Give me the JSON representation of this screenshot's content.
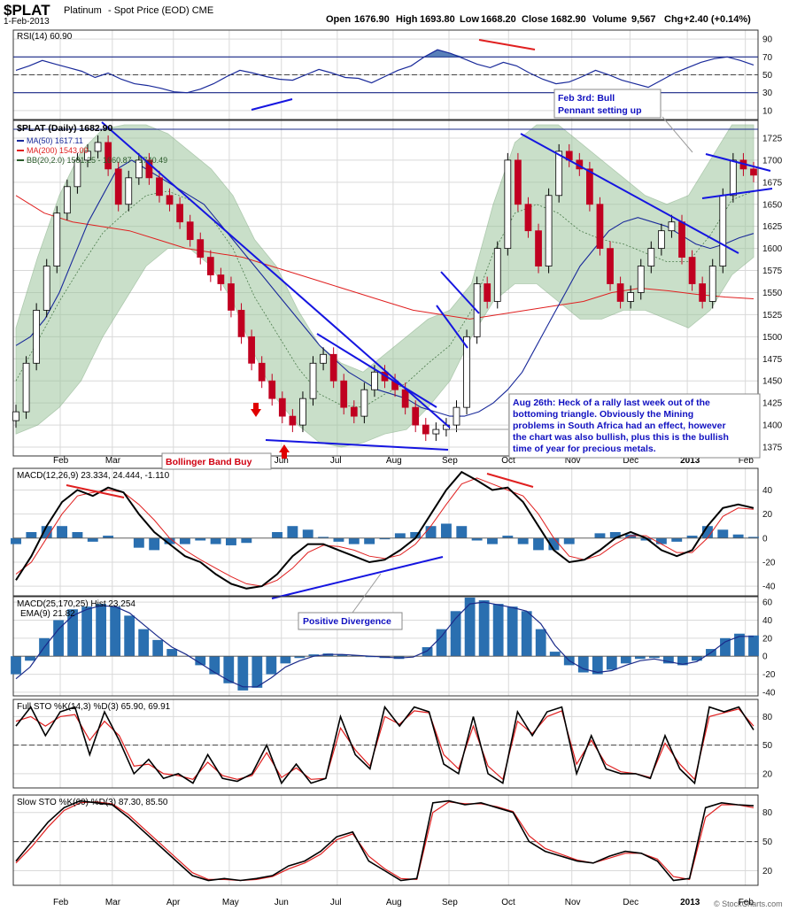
{
  "header": {
    "symbol": "$PLAT",
    "name": "Platinum",
    "desc": "- Spot Price (EOD) CME",
    "date": "1-Feb-2013",
    "open_label": "Open",
    "open": "1676.90",
    "high_label": "High",
    "high": "1693.80",
    "low_label": "Low",
    "low": "1668.20",
    "close_label": "Close",
    "close": "1682.90",
    "volume_label": "Volume",
    "volume": "9,567",
    "chg_label": "Chg",
    "chg": "+2.40 (+0.14%)",
    "source": "© StockCharts.com"
  },
  "colors": {
    "up": "#000000",
    "down": "#c00020",
    "ma50": "#1a2a9a",
    "ma200": "#e02020",
    "bb_fill": "#9dc59d",
    "trend": "#1515e0",
    "red_trend": "#e02020",
    "hist": "#2a6fb0",
    "rsi_fill": "#3060a8"
  },
  "x_axis": {
    "months": [
      "Feb",
      "Mar",
      "Apr",
      "May",
      "Jun",
      "Jul",
      "Aug",
      "Sep",
      "Oct",
      "Nov",
      "Dec",
      "2013",
      "Feb"
    ]
  },
  "chart_data": [
    {
      "type": "line",
      "panel": "rsi",
      "label": "RSI(14) 60.90",
      "ylim": [
        0,
        100
      ],
      "yticks": [
        10,
        30,
        50,
        70,
        90
      ],
      "values": [
        55,
        60,
        66,
        62,
        58,
        54,
        47,
        52,
        45,
        40,
        38,
        35,
        31,
        30,
        34,
        40,
        48,
        55,
        52,
        48,
        45,
        44,
        50,
        56,
        52,
        47,
        46,
        41,
        48,
        55,
        60,
        70,
        78,
        74,
        68,
        62,
        58,
        64,
        60,
        52,
        45,
        40,
        42,
        48,
        55,
        50,
        44,
        40,
        36,
        44,
        52,
        58,
        64,
        68,
        70,
        66,
        61
      ]
    },
    {
      "type": "candlestick",
      "panel": "price",
      "title": "$PLAT (Daily) 1682.90",
      "legend": [
        "MA(50) 1617.11",
        "MA(200) 1543.00",
        "BB(20,2.0) 1581.25 - 1660.87 - 1740.49"
      ],
      "ylim": [
        1365,
        1745
      ],
      "yticks": [
        1375,
        1400,
        1425,
        1450,
        1475,
        1500,
        1525,
        1550,
        1575,
        1600,
        1625,
        1650,
        1675,
        1700,
        1725
      ],
      "close": [
        1415,
        1470,
        1530,
        1580,
        1640,
        1670,
        1700,
        1710,
        1720,
        1690,
        1650,
        1680,
        1700,
        1680,
        1660,
        1650,
        1630,
        1610,
        1590,
        1570,
        1560,
        1530,
        1500,
        1470,
        1450,
        1430,
        1410,
        1400,
        1430,
        1470,
        1480,
        1450,
        1420,
        1410,
        1440,
        1460,
        1450,
        1440,
        1420,
        1400,
        1390,
        1395,
        1400,
        1420,
        1500,
        1560,
        1540,
        1600,
        1700,
        1650,
        1620,
        1580,
        1660,
        1710,
        1700,
        1690,
        1650,
        1600,
        1560,
        1540,
        1550,
        1580,
        1600,
        1620,
        1630,
        1590,
        1560,
        1540,
        1580,
        1660,
        1700,
        1690,
        1683
      ],
      "ma50": [
        1490,
        1500,
        1520,
        1550,
        1590,
        1630,
        1660,
        1690,
        1700,
        1690,
        1680,
        1670,
        1660,
        1650,
        1630,
        1610,
        1590,
        1570,
        1550,
        1530,
        1510,
        1490,
        1475,
        1460,
        1450,
        1440,
        1435,
        1430,
        1420,
        1415,
        1410,
        1410,
        1415,
        1425,
        1440,
        1460,
        1490,
        1520,
        1550,
        1580,
        1600,
        1620,
        1630,
        1635,
        1630,
        1625,
        1615,
        1605,
        1600,
        1605,
        1612,
        1617
      ],
      "ma200": [
        1660,
        1640,
        1630,
        1625,
        1620,
        1610,
        1600,
        1595,
        1590,
        1580,
        1570,
        1560,
        1550,
        1540,
        1530,
        1525,
        1520,
        1525,
        1530,
        1535,
        1540,
        1550,
        1555,
        1552,
        1548,
        1545,
        1543
      ],
      "bb_upper": [
        1510,
        1590,
        1660,
        1710,
        1735,
        1740,
        1740,
        1730,
        1710,
        1690,
        1660,
        1610,
        1580,
        1530,
        1490,
        1470,
        1460,
        1480,
        1500,
        1520,
        1530,
        1560,
        1650,
        1720,
        1740,
        1740,
        1720,
        1700,
        1680,
        1660,
        1650,
        1660,
        1700,
        1740,
        1740
      ],
      "bb_lower": [
        1390,
        1400,
        1420,
        1450,
        1500,
        1540,
        1580,
        1600,
        1600,
        1580,
        1540,
        1480,
        1430,
        1400,
        1380,
        1375,
        1380,
        1390,
        1395,
        1420,
        1450,
        1500,
        1540,
        1560,
        1560,
        1540,
        1520,
        1520,
        1530,
        1530,
        1520,
        1510,
        1530,
        1570,
        1590
      ]
    },
    {
      "type": "line",
      "panel": "macd1",
      "label": "MACD(12,26,9) 23.334, 24.444, -1.110",
      "ylim": [
        -48,
        58
      ],
      "yticks": [
        -40,
        -20,
        0,
        20,
        40
      ],
      "macd": [
        -35,
        -15,
        10,
        30,
        40,
        35,
        42,
        38,
        20,
        5,
        -5,
        -15,
        -20,
        -30,
        -38,
        -42,
        -40,
        -30,
        -15,
        -5,
        -5,
        -10,
        -15,
        -20,
        -18,
        -10,
        0,
        20,
        40,
        55,
        48,
        40,
        42,
        30,
        10,
        -10,
        -20,
        -18,
        -10,
        0,
        5,
        0,
        -10,
        -15,
        -10,
        10,
        25,
        28,
        25
      ],
      "signal": [
        -30,
        -20,
        0,
        20,
        35,
        38,
        40,
        38,
        28,
        15,
        0,
        -10,
        -18,
        -25,
        -32,
        -38,
        -40,
        -35,
        -25,
        -12,
        -6,
        -7,
        -10,
        -15,
        -17,
        -14,
        -5,
        10,
        28,
        45,
        50,
        45,
        40,
        35,
        20,
        0,
        -15,
        -18,
        -14,
        -5,
        2,
        2,
        -5,
        -12,
        -12,
        0,
        18,
        25,
        24
      ],
      "hist": [
        -5,
        5,
        10,
        10,
        5,
        -3,
        2,
        0,
        -8,
        -10,
        -5,
        -5,
        -2,
        -5,
        -6,
        -4,
        0,
        5,
        10,
        7,
        1,
        -3,
        -5,
        -5,
        -1,
        4,
        5,
        10,
        12,
        10,
        -2,
        -5,
        2,
        -5,
        -10,
        -10,
        -5,
        0,
        4,
        5,
        3,
        -2,
        -5,
        -3,
        2,
        10,
        7,
        3,
        1
      ]
    },
    {
      "type": "bar",
      "panel": "macd2",
      "label": "MACD(25,170,25) Hist 23.254",
      "legend": "EMA(9) 21.82",
      "ylim": [
        -44,
        66
      ],
      "yticks": [
        -40,
        -20,
        0,
        20,
        40,
        60
      ],
      "hist": [
        -20,
        -5,
        20,
        40,
        52,
        55,
        58,
        55,
        45,
        30,
        18,
        8,
        0,
        -10,
        -20,
        -30,
        -38,
        -35,
        -20,
        -8,
        -2,
        2,
        3,
        2,
        1,
        -1,
        -2,
        -3,
        0,
        10,
        30,
        50,
        65,
        62,
        58,
        55,
        50,
        30,
        5,
        -10,
        -18,
        -20,
        -15,
        -8,
        -3,
        -2,
        -8,
        -10,
        -5,
        8,
        20,
        25,
        23
      ],
      "ema": [
        -25,
        -12,
        10,
        30,
        45,
        52,
        56,
        55,
        48,
        35,
        22,
        10,
        2,
        -8,
        -18,
        -27,
        -34,
        -34,
        -24,
        -12,
        -5,
        0,
        2,
        2,
        1,
        0,
        -1,
        -2,
        -1,
        6,
        22,
        42,
        58,
        60,
        57,
        54,
        50,
        36,
        12,
        -5,
        -14,
        -18,
        -16,
        -10,
        -5,
        -3,
        -6,
        -9,
        -6,
        4,
        16,
        22,
        22
      ]
    },
    {
      "type": "line",
      "panel": "fullsto",
      "label": "Full STO %K(14,3) %D(3) 65.90, 69.91",
      "ylim": [
        5,
        98
      ],
      "yticks": [
        20,
        50,
        80
      ],
      "k": [
        70,
        90,
        60,
        85,
        90,
        40,
        85,
        55,
        20,
        35,
        15,
        20,
        10,
        40,
        15,
        12,
        20,
        50,
        10,
        30,
        10,
        15,
        80,
        40,
        25,
        90,
        70,
        90,
        85,
        30,
        20,
        80,
        20,
        10,
        85,
        60,
        85,
        90,
        20,
        60,
        25,
        20,
        20,
        15,
        60,
        25,
        10,
        90,
        85,
        90,
        66
      ],
      "d": [
        75,
        80,
        70,
        80,
        82,
        55,
        75,
        60,
        28,
        30,
        20,
        18,
        14,
        32,
        18,
        14,
        18,
        42,
        16,
        26,
        14,
        15,
        68,
        45,
        28,
        80,
        72,
        86,
        84,
        40,
        25,
        70,
        28,
        14,
        75,
        62,
        80,
        86,
        30,
        55,
        30,
        22,
        20,
        16,
        52,
        30,
        14,
        80,
        84,
        88,
        70
      ]
    },
    {
      "type": "line",
      "panel": "slowsto",
      "label": "Slow STO %K(60) %D(3) 87.30, 85.50",
      "ylim": [
        5,
        98
      ],
      "yticks": [
        20,
        50,
        80
      ],
      "k": [
        30,
        50,
        70,
        85,
        92,
        90,
        88,
        75,
        60,
        45,
        30,
        15,
        10,
        12,
        10,
        12,
        15,
        25,
        30,
        40,
        55,
        60,
        30,
        20,
        10,
        12,
        90,
        92,
        88,
        90,
        85,
        80,
        50,
        40,
        35,
        30,
        28,
        35,
        40,
        38,
        30,
        10,
        12,
        85,
        90,
        88,
        87
      ],
      "d": [
        28,
        45,
        65,
        82,
        90,
        91,
        89,
        78,
        63,
        48,
        33,
        18,
        11,
        11,
        10,
        11,
        14,
        22,
        28,
        37,
        52,
        58,
        35,
        22,
        12,
        11,
        80,
        91,
        89,
        89,
        86,
        81,
        56,
        43,
        37,
        31,
        28,
        33,
        38,
        38,
        32,
        14,
        11,
        75,
        88,
        88,
        85
      ]
    }
  ],
  "annotations": {
    "feb3": [
      "Feb 3rd: Bull",
      "Pennant setting up"
    ],
    "aug26": [
      "Aug 26th: Heck of a rally last week out of the",
      "bottoming triangle.  Obviously the Mining",
      "problems in South Africa had an effect, however",
      "the chart was also bullish, plus this is the bullish",
      "time of year for precious metals."
    ],
    "bollinger": "Bollinger Band Buy",
    "divergence": "Positive Divergence"
  }
}
